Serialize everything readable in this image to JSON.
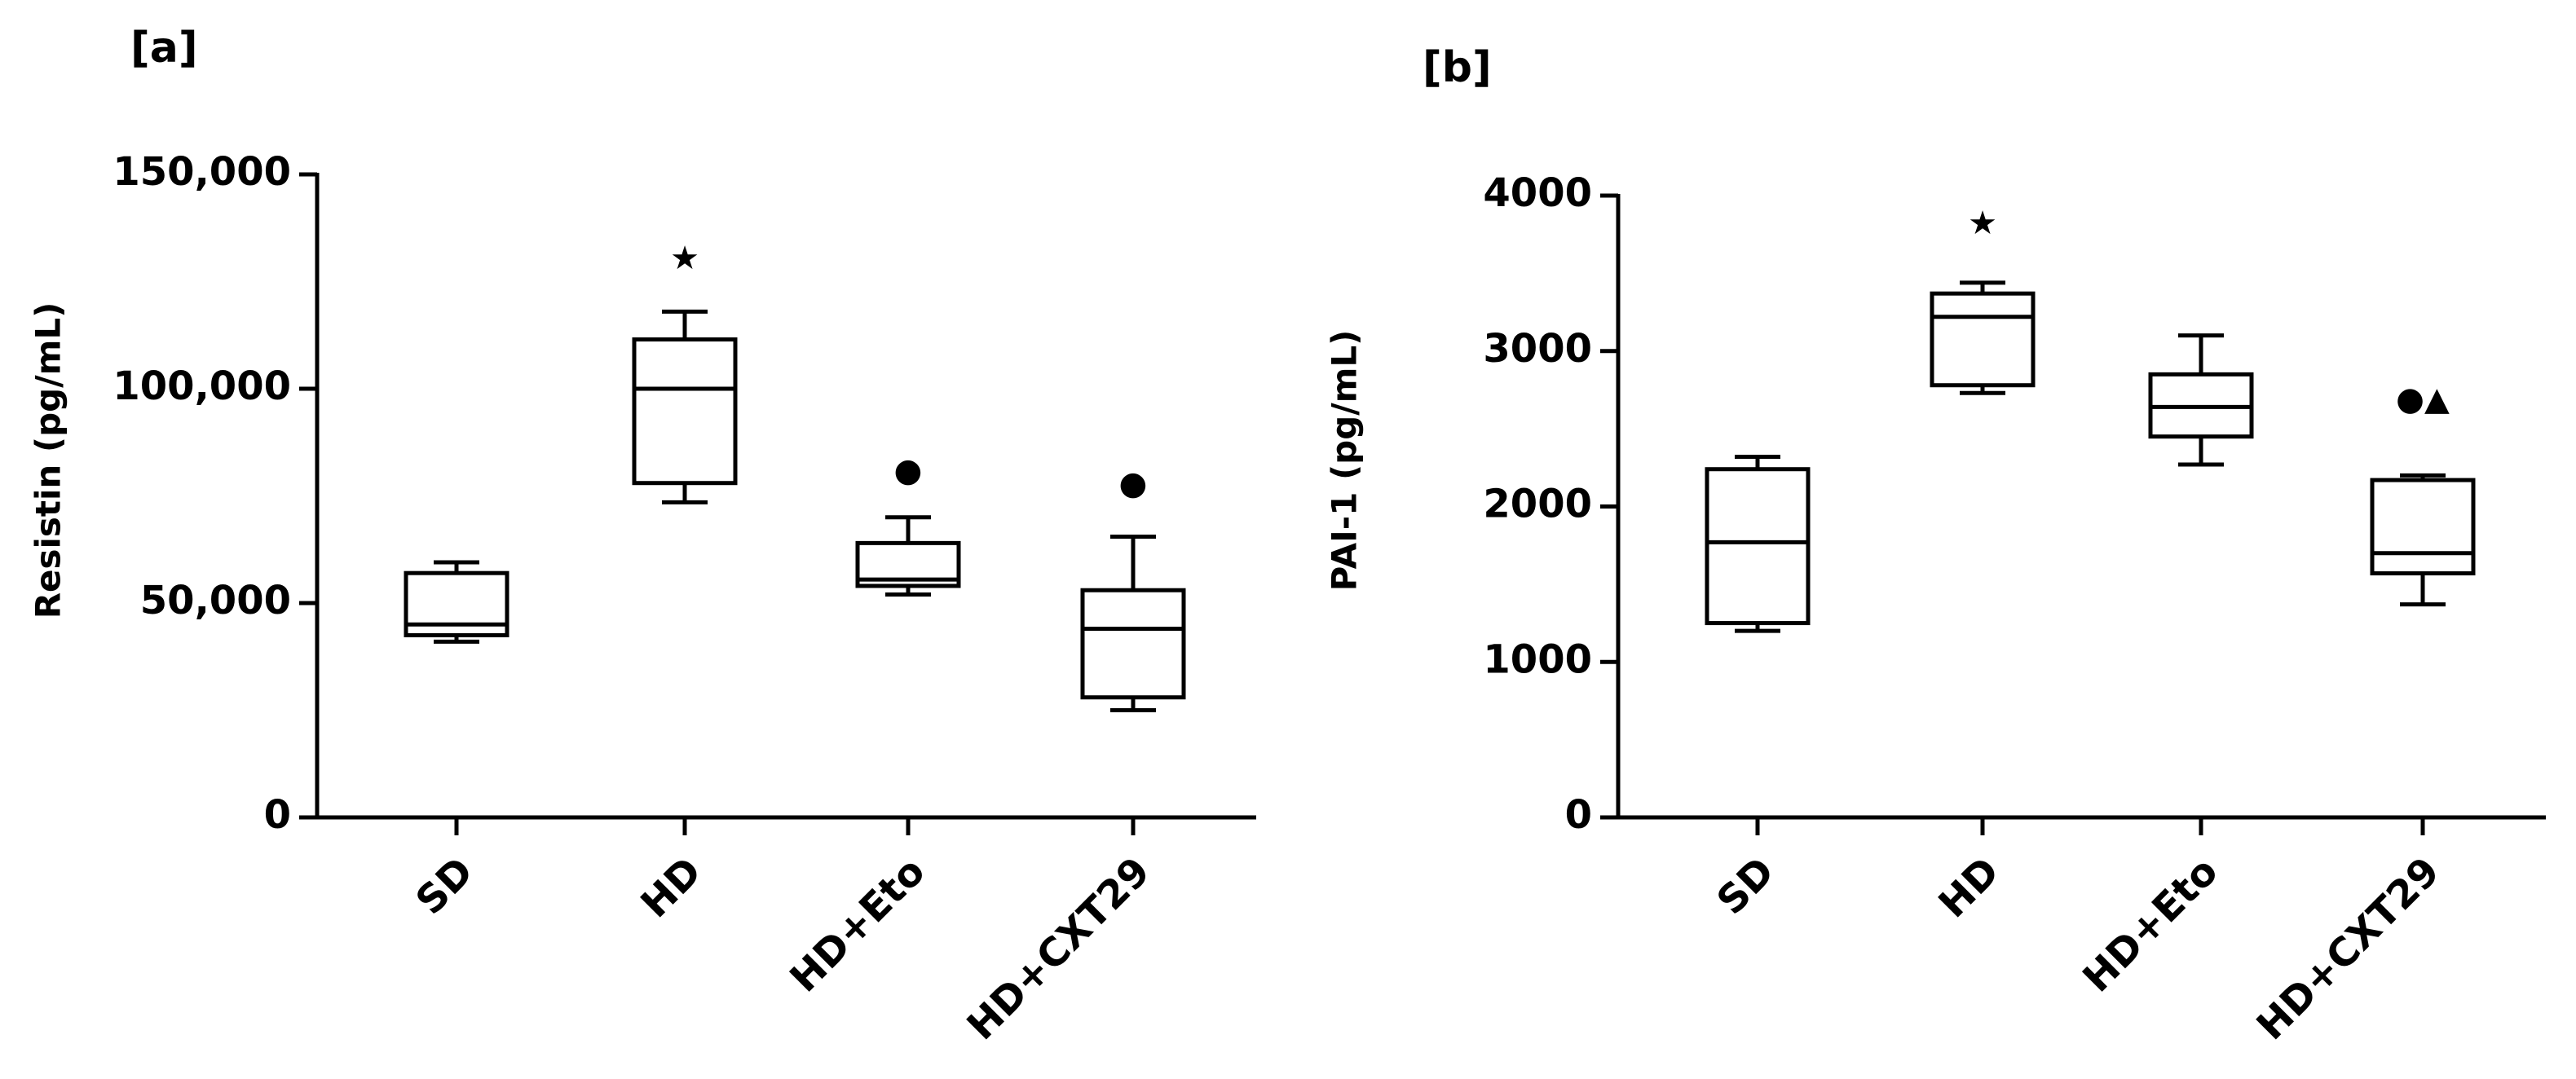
{
  "chart_data": [
    {
      "type": "box",
      "title": "[a]",
      "y_label": "Resistin (pg/mL)",
      "categories": [
        "SD",
        "HD",
        "HD+Eto",
        "HD+CXT29"
      ],
      "min": [
        41000,
        73500,
        52000,
        25000
      ],
      "q1": [
        42500,
        78000,
        54000,
        28000
      ],
      "median": [
        45000,
        100000,
        55500,
        44000
      ],
      "q3": [
        57000,
        111500,
        64000,
        53000
      ],
      "max": [
        59500,
        118000,
        70000,
        65500
      ],
      "color": "#000000",
      "ylim": [
        0,
        150000
      ],
      "yticks": [
        0,
        {
          "value": 50000,
          "label": "50,000"
        },
        {
          "value": 100000,
          "label": "100,000"
        },
        {
          "value": 150000,
          "label": "150,000"
        }
      ],
      "annotations": [
        {
          "text": "★",
          "x": "HD",
          "y": 130000
        },
        {
          "text": "●",
          "x": "HD+Eto",
          "y": 80500
        },
        {
          "text": "●",
          "x": "HD+CXT29",
          "y": 77500
        }
      ]
    },
    {
      "type": "box",
      "title": "[b]",
      "y_label": "PAI-1 (pg/mL)",
      "categories": [
        "SD",
        "HD",
        "HD+Eto",
        "HD+CXT29"
      ],
      "min": [
        1200,
        2730,
        2270,
        1370
      ],
      "q1": [
        1250,
        2780,
        2450,
        1570
      ],
      "median": [
        1770,
        3220,
        2640,
        1700
      ],
      "q3": [
        2240,
        3370,
        2850,
        2170
      ],
      "max": [
        2320,
        3440,
        3100,
        2200
      ],
      "color": "#000000",
      "ylim": [
        0,
        4000
      ],
      "yticks": [
        0,
        1000,
        2000,
        3000,
        4000
      ],
      "annotations": [
        {
          "text": "★",
          "x": "HD",
          "y": 3810
        },
        {
          "text": "●▲",
          "x": "HD+CXT29",
          "y": 2680
        }
      ]
    }
  ]
}
